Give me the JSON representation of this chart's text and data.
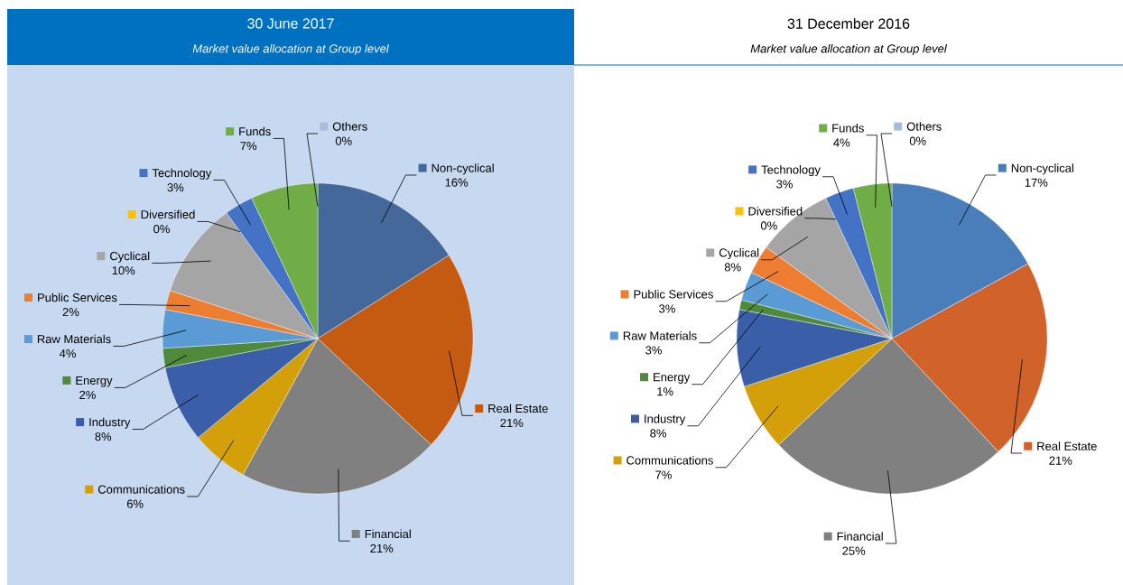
{
  "chart_data": [
    {
      "type": "pie",
      "title": "30 June 2017",
      "subtitle": "Market value allocation at Group level",
      "legend": "left",
      "categories": [
        "Non-cyclical",
        "Real Estate",
        "Financial",
        "Communications",
        "Industry",
        "Energy",
        "Raw Materials",
        "Public Services",
        "Cyclical",
        "Diversified",
        "Technology",
        "Funds",
        "Others"
      ],
      "values": [
        16,
        21,
        21,
        6,
        8,
        2,
        4,
        2,
        10,
        0,
        3,
        7,
        0
      ],
      "value_labels": [
        "16%",
        "21%",
        "21%",
        "6%",
        "8%",
        "2%",
        "4%",
        "2%",
        "10%",
        "0%",
        "3%",
        "7%",
        "0%"
      ],
      "colors": [
        "#44689a",
        "#c55a11",
        "#808080",
        "#d4a00a",
        "#3a5fa8",
        "#4e8a3a",
        "#5b9bd5",
        "#ed7d31",
        "#a5a5a5",
        "#ffc000",
        "#4472c4",
        "#70ad47",
        "#a9bcd9"
      ]
    },
    {
      "type": "pie",
      "title": "31 December 2016",
      "subtitle": "Market value allocation at Group level",
      "legend": "left",
      "categories": [
        "Non-cyclical",
        "Real Estate",
        "Financial",
        "Communications",
        "Industry",
        "Energy",
        "Raw Materials",
        "Public Services",
        "Cyclical",
        "Diversified",
        "Technology",
        "Funds",
        "Others"
      ],
      "values": [
        17,
        21,
        25,
        7,
        8,
        1,
        3,
        3,
        8,
        0,
        3,
        4,
        0
      ],
      "value_labels": [
        "17%",
        "21%",
        "25%",
        "7%",
        "8%",
        "1%",
        "3%",
        "3%",
        "8%",
        "0%",
        "3%",
        "4%",
        "0%"
      ],
      "colors": [
        "#4a7ebb",
        "#d0622a",
        "#808080",
        "#d4a00a",
        "#3a5fa8",
        "#4e8a3a",
        "#5b9bd5",
        "#ed7d31",
        "#a5a5a5",
        "#ffc000",
        "#4472c4",
        "#70ad47",
        "#a9bcd9"
      ]
    }
  ]
}
